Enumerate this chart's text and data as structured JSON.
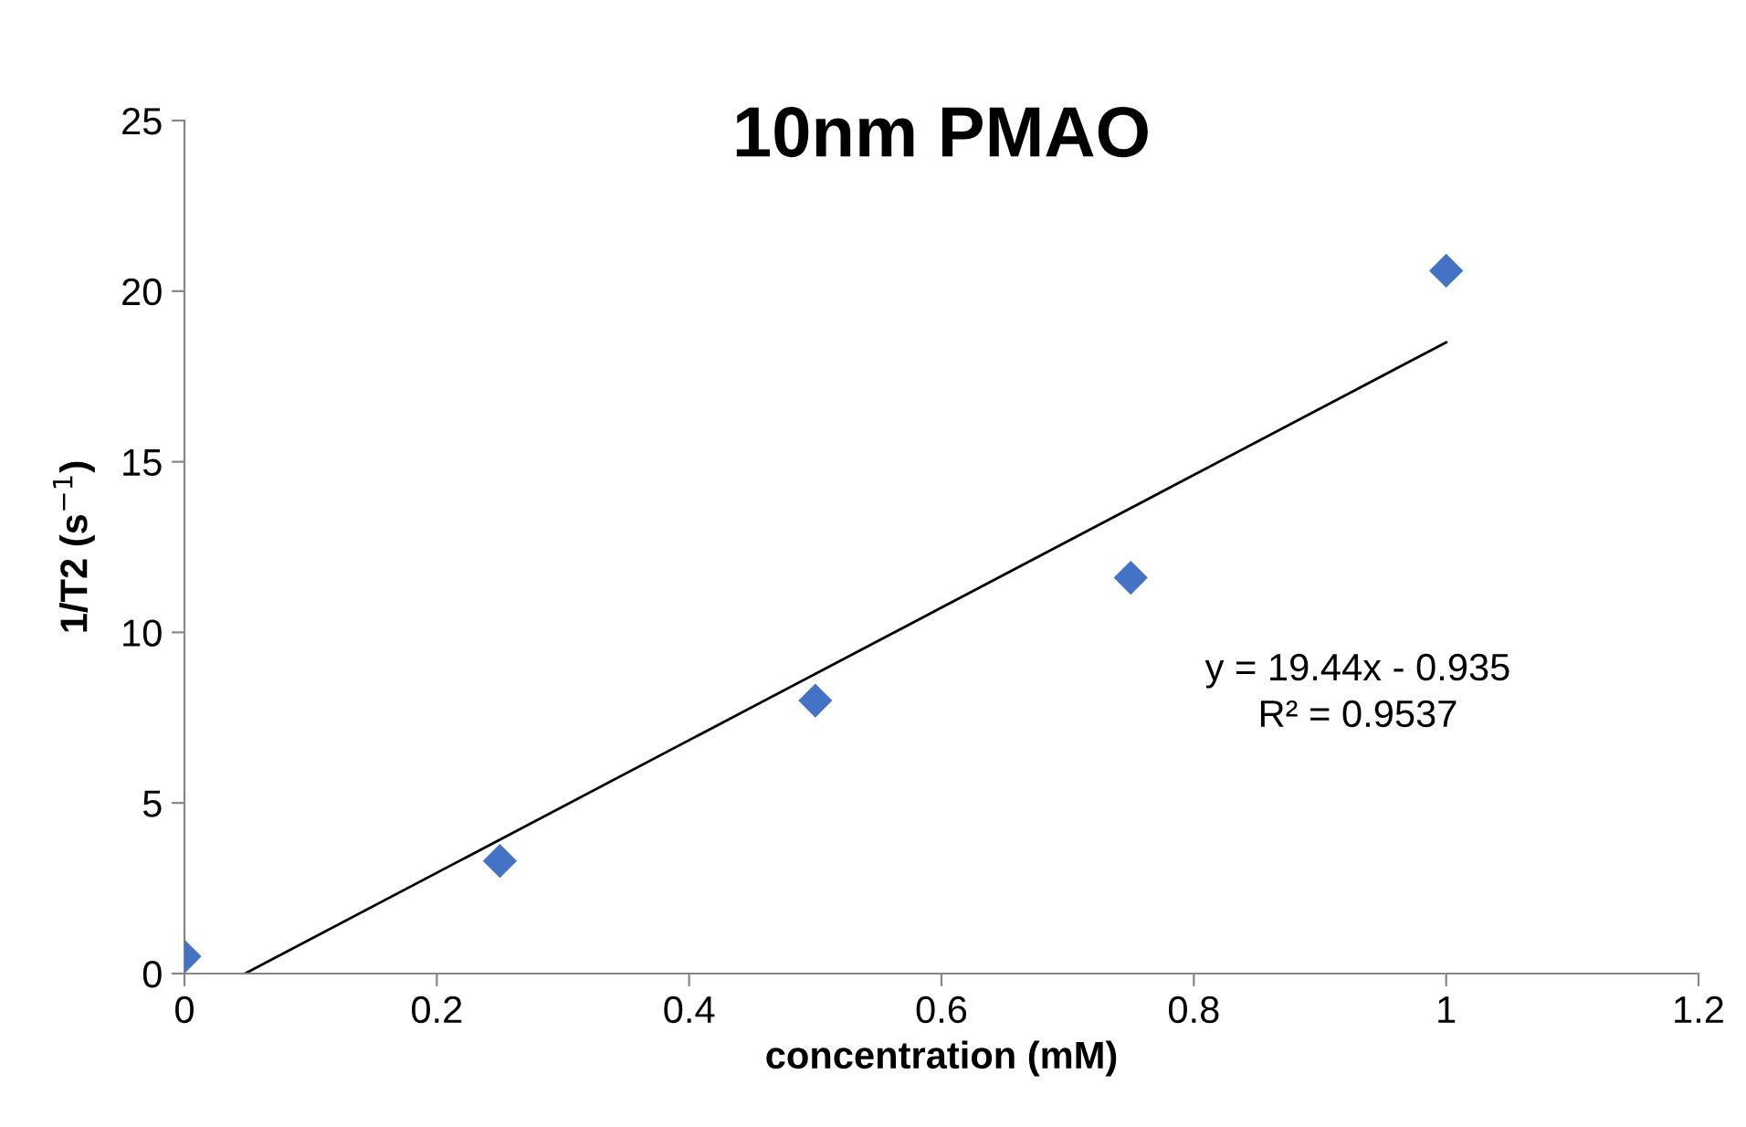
{
  "chart_data": {
    "type": "scatter",
    "title": "10nm PMAO",
    "xlabel": "concentration (mM)",
    "ylabel": "1/T2 (s$^{−1}$)",
    "series": [
      {
        "type": "scatter",
        "color": "#4472c4",
        "marker": "diamond",
        "x": [
          0,
          0.25,
          0.5,
          0.75,
          1
        ],
        "values": [
          0.5,
          3.3,
          8.0,
          11.6,
          20.6
        ]
      },
      {
        "type": "line",
        "color": "#000000",
        "marker": "none",
        "line_style": "solid",
        "x": [
          0.048,
          1
        ],
        "values": [
          0,
          18.5
        ]
      }
    ],
    "xlim": [
      0,
      1.2
    ],
    "xticks": [
      0,
      0.2,
      0.4,
      0.6,
      0.8,
      1,
      1.2
    ],
    "ylim": [
      0,
      25
    ],
    "yticks": [
      0,
      5,
      10,
      15,
      20,
      25
    ],
    "grid": false,
    "legend": false,
    "annotations": [
      "y = 19.44x - 0.935\nR² = 0.9537"
    ]
  }
}
